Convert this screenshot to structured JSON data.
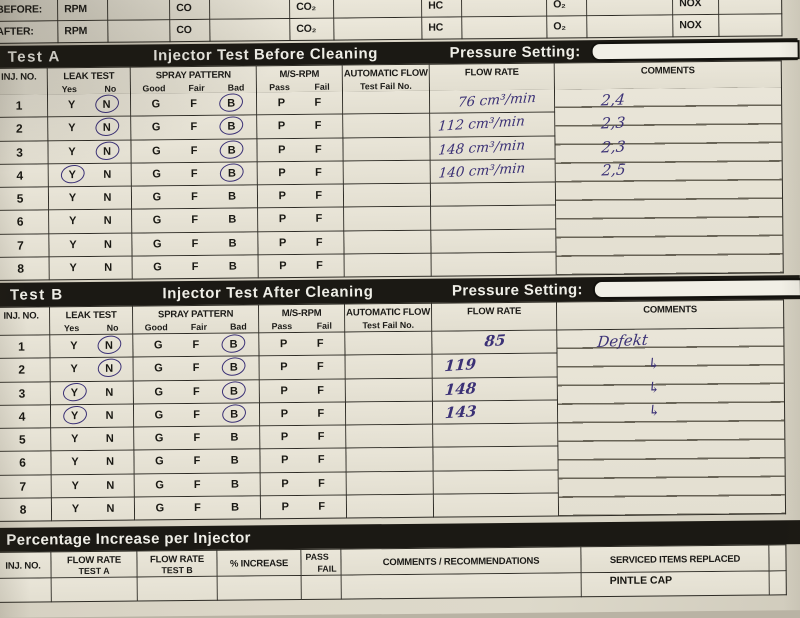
{
  "colors": {
    "paper": "#d8d2c3",
    "bar_black": "#1b1914",
    "ink_handwriting": "#3b3176",
    "print_text": "#1c1b18"
  },
  "gas_readings": {
    "rows": [
      {
        "label": "BEFORE:",
        "fields": [
          "RPM",
          "CO",
          "CO₂",
          "HC",
          "O₂",
          "NOX"
        ]
      },
      {
        "label": "AFTER:",
        "fields": [
          "RPM",
          "CO",
          "CO₂",
          "HC",
          "O₂",
          "NOX"
        ]
      }
    ]
  },
  "columns": {
    "inj_no": "INJ. NO.",
    "leak_test": "LEAK TEST",
    "leak_sub": [
      "Yes",
      "No"
    ],
    "spray": "SPRAY PATTERN",
    "spray_sub": [
      "Good",
      "Fair",
      "Bad"
    ],
    "ms_rpm": "M/S-RPM",
    "ms_sub": [
      "Pass",
      "Fail"
    ],
    "auto_flow": "AUTOMATIC FLOW",
    "auto_sub": "Test Fail No.",
    "flow_rate": "FLOW RATE",
    "comments": "COMMENTS"
  },
  "row_letters": {
    "leak": [
      "Y",
      "N"
    ],
    "spray": [
      "G",
      "F",
      "B"
    ],
    "ms": [
      "P",
      "F"
    ]
  },
  "tests": [
    {
      "id": "testA",
      "tab": "Test A",
      "title": "Injector Test Before Cleaning",
      "pressure_label": "Pressure Setting:",
      "rows": [
        {
          "no": "1",
          "leak_circled": "N",
          "spray_circled": "B",
          "flow": "76 cm³/min",
          "comment": "2,4"
        },
        {
          "no": "2",
          "leak_circled": "N",
          "spray_circled": "B",
          "flow": "112 cm³/min",
          "comment": "2,3"
        },
        {
          "no": "3",
          "leak_circled": "N",
          "spray_circled": "B",
          "flow": "148 cm³/min",
          "comment": "2,3"
        },
        {
          "no": "4",
          "leak_circled": "Y",
          "spray_circled": "B",
          "flow": "140 cm³/min",
          "comment": "2,5"
        },
        {
          "no": "5"
        },
        {
          "no": "6"
        },
        {
          "no": "7"
        },
        {
          "no": "8"
        }
      ]
    },
    {
      "id": "testB",
      "tab": "Test B",
      "title": "Injector Test After Cleaning",
      "pressure_label": "Pressure Setting:",
      "rows": [
        {
          "no": "1",
          "leak_circled": "N",
          "spray_circled": "B",
          "flow": "85",
          "comment": "Defekt"
        },
        {
          "no": "2",
          "leak_circled": "N",
          "spray_circled": "B",
          "flow": "119",
          "comment": "↳"
        },
        {
          "no": "3",
          "leak_circled": "Y",
          "spray_circled": "B",
          "flow": "148",
          "comment": "↳"
        },
        {
          "no": "4",
          "leak_circled": "Y",
          "spray_circled": "B",
          "flow": "143",
          "comment": "↳"
        },
        {
          "no": "5"
        },
        {
          "no": "6"
        },
        {
          "no": "7"
        },
        {
          "no": "8"
        }
      ]
    }
  ],
  "percentage_section": {
    "title": "Percentage Increase per Injector",
    "headers": [
      {
        "lines": [
          "INJ. NO."
        ]
      },
      {
        "lines": [
          "FLOW RATE",
          "TEST A"
        ]
      },
      {
        "lines": [
          "FLOW RATE",
          "TEST B"
        ]
      },
      {
        "lines": [
          "% INCREASE"
        ]
      },
      {
        "lines": [
          "PASS",
          "FAIL"
        ],
        "style": "passfail"
      },
      {
        "lines": [
          "COMMENTS / RECOMMENDATIONS"
        ]
      },
      {
        "lines": [
          "SERVICED ITEMS REPLACED"
        ]
      },
      {
        "lines": [
          ""
        ]
      }
    ],
    "partial_row_text": "PINTLE CAP"
  }
}
